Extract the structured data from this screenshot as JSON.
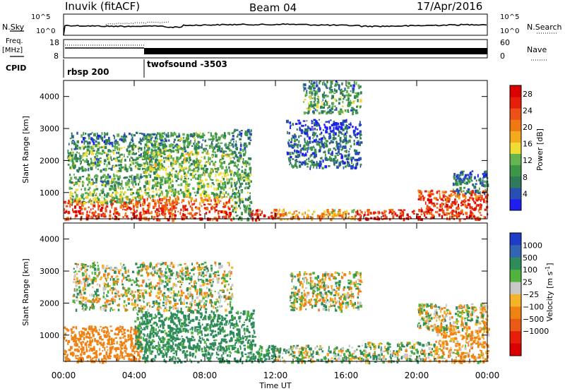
{
  "header": {
    "station": "Inuvik (fitACF)",
    "beam": "Beam 04",
    "date": "17/Apr/2016"
  },
  "strip": {
    "nsky_label": "N.Sky",
    "nsky_ticks": [
      "10^5",
      "10^0"
    ],
    "nsearch_label": "N.Search",
    "nsearch_ticks": [
      "10^5",
      "10^0"
    ],
    "freq_label": "Freq.",
    "freq_unit": "[MHz]",
    "freq_ticks": [
      "18",
      "8"
    ],
    "nave_label": "Nave",
    "nave_ticks": [
      "60",
      "0"
    ],
    "cpid_label": "CPID",
    "cpid_segments": [
      {
        "name": "rbsp 200",
        "start_hour": 0
      },
      {
        "name": "twofsound -3503",
        "start_hour": 4.5
      }
    ]
  },
  "chart_data": [
    {
      "type": "heatmap",
      "quantity": "power",
      "xlabel": "",
      "ylabel": "Slant Range [km]",
      "x_ticks": [
        "00:00",
        "04:00",
        "08:00",
        "12:00",
        "16:00",
        "20:00",
        "00:00"
      ],
      "y_ticks": [
        1000,
        2000,
        3000,
        4000
      ],
      "ylim": [
        180,
        4500
      ],
      "colorbar": {
        "label": "Power [dB]",
        "ticks": [
          4,
          8,
          12,
          16,
          20,
          24,
          28
        ],
        "range": [
          0,
          30
        ],
        "colors": [
          "#1e1ef0",
          "#2850b4",
          "#2e7a5a",
          "#3c9646",
          "#64b450",
          "#f0dc32",
          "#f5aa1e",
          "#f07814",
          "#eb5014",
          "#e61e0a",
          "#dc0000"
        ]
      },
      "regions": [
        {
          "t": [
            0,
            4.4
          ],
          "r": [
            180,
            800
          ],
          "v": 25
        },
        {
          "t": [
            0.3,
            4.4
          ],
          "r": [
            700,
            1600
          ],
          "v": 12
        },
        {
          "t": [
            0.2,
            5.5
          ],
          "r": [
            1700,
            2900
          ],
          "v": 10
        },
        {
          "t": [
            4.4,
            9.5
          ],
          "r": [
            180,
            900
          ],
          "v": 24
        },
        {
          "t": [
            4.5,
            9.5
          ],
          "r": [
            900,
            2900
          ],
          "v": 12
        },
        {
          "t": [
            9.5,
            10.6
          ],
          "r": [
            180,
            3000
          ],
          "v": 10
        },
        {
          "t": [
            10.5,
            12
          ],
          "r": [
            180,
            500
          ],
          "v": 26
        },
        {
          "t": [
            12,
            16.5
          ],
          "r": [
            180,
            500
          ],
          "v": 20
        },
        {
          "t": [
            12.6,
            16.8
          ],
          "r": [
            1800,
            3300
          ],
          "v": 6
        },
        {
          "t": [
            13.5,
            16.8
          ],
          "r": [
            3500,
            4500
          ],
          "v": 10
        },
        {
          "t": [
            16.5,
            20
          ],
          "r": [
            180,
            500
          ],
          "v": 27
        },
        {
          "t": [
            20,
            24
          ],
          "r": [
            180,
            1100
          ],
          "v": 25
        },
        {
          "t": [
            22,
            24
          ],
          "r": [
            1000,
            1700
          ],
          "v": 8
        }
      ]
    },
    {
      "type": "heatmap",
      "quantity": "velocity",
      "xlabel": "Time UT",
      "ylabel": "Slant Range [km]",
      "x_ticks": [
        "00:00",
        "04:00",
        "08:00",
        "12:00",
        "16:00",
        "20:00",
        "00:00"
      ],
      "y_ticks": [
        1000,
        2000,
        3000,
        4000
      ],
      "ylim": [
        180,
        4500
      ],
      "colorbar": {
        "label": "Velocity [m s^-1]",
        "ticks": [
          "1000",
          "500",
          "100",
          "25",
          "−25",
          "−100",
          "−500",
          "−1000"
        ],
        "colors": [
          "#1e3cc8",
          "#3264b4",
          "#2e8c5a",
          "#50b43c",
          "#c8c8c8",
          "#f5b428",
          "#f08214",
          "#eb5a14",
          "#e61e0a",
          "#dc0000"
        ]
      },
      "regions": [
        {
          "t": [
            0,
            4.4
          ],
          "r": [
            180,
            1300
          ],
          "v": -300
        },
        {
          "t": [
            0.5,
            9.5
          ],
          "r": [
            1800,
            3300
          ],
          "v": 0
        },
        {
          "t": [
            4,
            10.8
          ],
          "r": [
            600,
            1800
          ],
          "v": 250
        },
        {
          "t": [
            4.4,
            12
          ],
          "r": [
            180,
            700
          ],
          "v": 200
        },
        {
          "t": [
            12,
            17
          ],
          "r": [
            180,
            700
          ],
          "v": 80
        },
        {
          "t": [
            12.8,
            16.8
          ],
          "r": [
            1800,
            3000
          ],
          "v": 0
        },
        {
          "t": [
            17,
            21
          ],
          "r": [
            180,
            800
          ],
          "v": 60
        },
        {
          "t": [
            21,
            24
          ],
          "r": [
            180,
            1300
          ],
          "v": -150
        },
        {
          "t": [
            20,
            24
          ],
          "r": [
            1200,
            2000
          ],
          "v": 0
        }
      ]
    }
  ]
}
